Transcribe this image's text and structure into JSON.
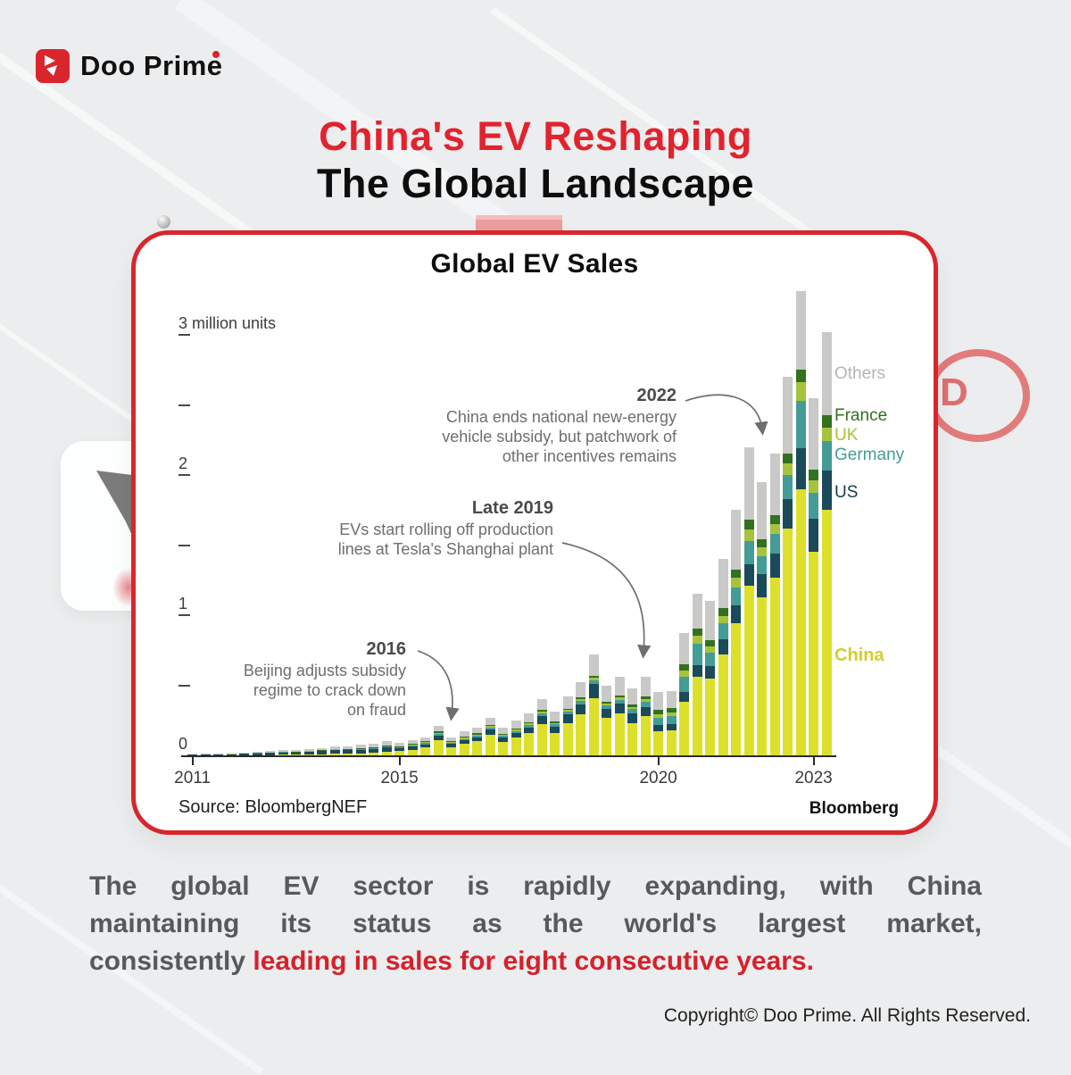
{
  "brand": {
    "logo_text": "Doo Prime"
  },
  "header": {
    "title_line1": "China's EV Reshaping",
    "title_line2": "The Global Landscape"
  },
  "card": {
    "source": "Source: BloombergNEF",
    "attribution": "Bloomberg"
  },
  "annotations": [
    {
      "year": "2022",
      "lines": [
        "China ends national new-energy",
        "vehicle subsidy, but patchwork of",
        "other incentives remains"
      ]
    },
    {
      "year": "Late 2019",
      "lines": [
        "EVs start rolling off production",
        "lines at Tesla's Shanghai plant"
      ]
    },
    {
      "year": "2016",
      "lines": [
        "Beijing adjusts subsidy",
        "regime to crack down",
        "on fraud"
      ]
    }
  ],
  "chart_data": {
    "type": "bar",
    "stacked": true,
    "title": "Global EV Sales",
    "unit": "million units",
    "ylim": [
      0,
      3.5
    ],
    "y_axis": {
      "ticks": [
        {
          "value": 3,
          "label": "3 million units"
        },
        {
          "value": 2,
          "label": "2"
        },
        {
          "value": 1,
          "label": "1"
        },
        {
          "value": 0,
          "label": "0"
        }
      ],
      "minor_ticks": [
        0.5,
        1.5,
        2.5
      ]
    },
    "x_axis": {
      "ticks": [
        {
          "label": "2011",
          "quarter_index": 0
        },
        {
          "label": "2015",
          "quarter_index": 16
        },
        {
          "label": "2020",
          "quarter_index": 36
        },
        {
          "label": "2023",
          "quarter_index": 48
        }
      ]
    },
    "series_order": [
      "china",
      "us",
      "germany",
      "uk",
      "france",
      "others"
    ],
    "series_colors": {
      "china": "#dde02b",
      "us": "#1b4a5a",
      "germany": "#449c96",
      "uk": "#a6c33d",
      "france": "#337020",
      "others": "#c9c9c7"
    },
    "legend": [
      {
        "key": "others",
        "label": "Others",
        "color": "#b5b5b3"
      },
      {
        "key": "france",
        "label": "France",
        "color": "#33701f"
      },
      {
        "key": "uk",
        "label": "UK",
        "color": "#a6c33d"
      },
      {
        "key": "germany",
        "label": "Germany",
        "color": "#439c96"
      },
      {
        "key": "us",
        "label": "US",
        "color": "#12404f"
      },
      {
        "key": "china",
        "label": "China",
        "color": "#d2ce2b"
      }
    ],
    "quarters": [
      {
        "label": "2011 Q1",
        "china": 0.001,
        "us": 0.003,
        "germany": 0.0,
        "uk": 0.0,
        "france": 0.001,
        "others": 0.003
      },
      {
        "label": "2011 Q2",
        "china": 0.001,
        "us": 0.004,
        "germany": 0.0,
        "uk": 0.0,
        "france": 0.001,
        "others": 0.004
      },
      {
        "label": "2011 Q3",
        "china": 0.001,
        "us": 0.005,
        "germany": 0.001,
        "uk": 0.0,
        "france": 0.001,
        "others": 0.004
      },
      {
        "label": "2011 Q4",
        "china": 0.002,
        "us": 0.006,
        "germany": 0.001,
        "uk": 0.001,
        "france": 0.001,
        "others": 0.005
      },
      {
        "label": "2012 Q1",
        "china": 0.002,
        "us": 0.009,
        "germany": 0.001,
        "uk": 0.001,
        "france": 0.002,
        "others": 0.007
      },
      {
        "label": "2012 Q2",
        "china": 0.003,
        "us": 0.012,
        "germany": 0.001,
        "uk": 0.001,
        "france": 0.002,
        "others": 0.009
      },
      {
        "label": "2012 Q3",
        "china": 0.003,
        "us": 0.013,
        "germany": 0.001,
        "uk": 0.001,
        "france": 0.002,
        "others": 0.01
      },
      {
        "label": "2012 Q4",
        "china": 0.004,
        "us": 0.017,
        "germany": 0.002,
        "uk": 0.001,
        "france": 0.003,
        "others": 0.013
      },
      {
        "label": "2013 Q1",
        "china": 0.004,
        "us": 0.016,
        "germany": 0.001,
        "uk": 0.001,
        "france": 0.003,
        "others": 0.013
      },
      {
        "label": "2013 Q2",
        "china": 0.006,
        "us": 0.02,
        "germany": 0.002,
        "uk": 0.001,
        "france": 0.003,
        "others": 0.016
      },
      {
        "label": "2013 Q3",
        "china": 0.008,
        "us": 0.022,
        "germany": 0.002,
        "uk": 0.001,
        "france": 0.003,
        "others": 0.016
      },
      {
        "label": "2013 Q4",
        "china": 0.012,
        "us": 0.026,
        "germany": 0.002,
        "uk": 0.002,
        "france": 0.004,
        "others": 0.019
      },
      {
        "label": "2014 Q1",
        "china": 0.012,
        "us": 0.024,
        "germany": 0.003,
        "uk": 0.002,
        "france": 0.004,
        "others": 0.02
      },
      {
        "label": "2014 Q2",
        "china": 0.015,
        "us": 0.026,
        "germany": 0.003,
        "uk": 0.003,
        "france": 0.005,
        "others": 0.023
      },
      {
        "label": "2014 Q3",
        "china": 0.018,
        "us": 0.028,
        "germany": 0.003,
        "uk": 0.003,
        "france": 0.005,
        "others": 0.025
      },
      {
        "label": "2014 Q4",
        "china": 0.025,
        "us": 0.032,
        "germany": 0.004,
        "uk": 0.004,
        "france": 0.006,
        "others": 0.029
      },
      {
        "label": "2015 Q1",
        "china": 0.03,
        "us": 0.02,
        "germany": 0.005,
        "uk": 0.005,
        "france": 0.005,
        "others": 0.025
      },
      {
        "label": "2015 Q2",
        "china": 0.04,
        "us": 0.022,
        "germany": 0.006,
        "uk": 0.006,
        "france": 0.006,
        "others": 0.03
      },
      {
        "label": "2015 Q3",
        "china": 0.055,
        "us": 0.024,
        "germany": 0.007,
        "uk": 0.007,
        "france": 0.007,
        "others": 0.03
      },
      {
        "label": "2015 Q4",
        "china": 0.11,
        "us": 0.03,
        "germany": 0.01,
        "uk": 0.01,
        "france": 0.01,
        "others": 0.04
      },
      {
        "label": "2016 Q1",
        "china": 0.055,
        "us": 0.025,
        "germany": 0.007,
        "uk": 0.007,
        "france": 0.007,
        "others": 0.029
      },
      {
        "label": "2016 Q2",
        "china": 0.08,
        "us": 0.028,
        "germany": 0.009,
        "uk": 0.008,
        "france": 0.008,
        "others": 0.037
      },
      {
        "label": "2016 Q3",
        "china": 0.1,
        "us": 0.03,
        "germany": 0.01,
        "uk": 0.009,
        "france": 0.009,
        "others": 0.042
      },
      {
        "label": "2016 Q4",
        "china": 0.145,
        "us": 0.04,
        "germany": 0.012,
        "uk": 0.01,
        "france": 0.01,
        "others": 0.053
      },
      {
        "label": "2017 Q1",
        "china": 0.095,
        "us": 0.03,
        "germany": 0.012,
        "uk": 0.008,
        "france": 0.008,
        "others": 0.047
      },
      {
        "label": "2017 Q2",
        "china": 0.125,
        "us": 0.035,
        "germany": 0.014,
        "uk": 0.01,
        "france": 0.009,
        "others": 0.057
      },
      {
        "label": "2017 Q3",
        "china": 0.16,
        "us": 0.04,
        "germany": 0.015,
        "uk": 0.011,
        "france": 0.01,
        "others": 0.064
      },
      {
        "label": "2017 Q4",
        "china": 0.225,
        "us": 0.055,
        "germany": 0.018,
        "uk": 0.013,
        "france": 0.012,
        "others": 0.077
      },
      {
        "label": "2018 Q1",
        "china": 0.16,
        "us": 0.045,
        "germany": 0.017,
        "uk": 0.01,
        "france": 0.01,
        "others": 0.068
      },
      {
        "label": "2018 Q2",
        "china": 0.23,
        "us": 0.06,
        "germany": 0.02,
        "uk": 0.012,
        "france": 0.012,
        "others": 0.086
      },
      {
        "label": "2018 Q3",
        "china": 0.29,
        "us": 0.075,
        "germany": 0.022,
        "uk": 0.013,
        "france": 0.013,
        "others": 0.107
      },
      {
        "label": "2018 Q4",
        "china": 0.41,
        "us": 0.1,
        "germany": 0.028,
        "uk": 0.016,
        "france": 0.016,
        "others": 0.15
      },
      {
        "label": "2019 Q1",
        "china": 0.27,
        "us": 0.06,
        "germany": 0.024,
        "uk": 0.016,
        "france": 0.014,
        "others": 0.116
      },
      {
        "label": "2019 Q2",
        "china": 0.3,
        "us": 0.07,
        "germany": 0.026,
        "uk": 0.017,
        "france": 0.015,
        "others": 0.132
      },
      {
        "label": "2019 Q3",
        "china": 0.23,
        "us": 0.07,
        "germany": 0.028,
        "uk": 0.018,
        "france": 0.016,
        "others": 0.118
      },
      {
        "label": "2019 Q4",
        "china": 0.28,
        "us": 0.065,
        "germany": 0.035,
        "uk": 0.02,
        "france": 0.02,
        "others": 0.14
      },
      {
        "label": "2020 Q1",
        "china": 0.17,
        "us": 0.045,
        "germany": 0.05,
        "uk": 0.03,
        "france": 0.03,
        "others": 0.125
      },
      {
        "label": "2020 Q2",
        "china": 0.18,
        "us": 0.045,
        "germany": 0.055,
        "uk": 0.028,
        "france": 0.032,
        "others": 0.12
      },
      {
        "label": "2020 Q3",
        "china": 0.38,
        "us": 0.07,
        "germany": 0.11,
        "uk": 0.045,
        "france": 0.045,
        "others": 0.22
      },
      {
        "label": "2020 Q4",
        "china": 0.56,
        "us": 0.085,
        "germany": 0.15,
        "uk": 0.055,
        "france": 0.055,
        "others": 0.245
      },
      {
        "label": "2021 Q1",
        "china": 0.55,
        "us": 0.09,
        "germany": 0.09,
        "uk": 0.045,
        "france": 0.045,
        "others": 0.28
      },
      {
        "label": "2021 Q2",
        "china": 0.72,
        "us": 0.11,
        "germany": 0.11,
        "uk": 0.055,
        "france": 0.055,
        "others": 0.35
      },
      {
        "label": "2021 Q3",
        "china": 0.94,
        "us": 0.13,
        "germany": 0.13,
        "uk": 0.065,
        "france": 0.06,
        "others": 0.425
      },
      {
        "label": "2021 Q4",
        "china": 1.21,
        "us": 0.15,
        "germany": 0.17,
        "uk": 0.08,
        "france": 0.07,
        "others": 0.52
      },
      {
        "label": "2022 Q1",
        "china": 1.13,
        "us": 0.16,
        "germany": 0.13,
        "uk": 0.065,
        "france": 0.055,
        "others": 0.41
      },
      {
        "label": "2022 Q2",
        "china": 1.27,
        "us": 0.17,
        "germany": 0.14,
        "uk": 0.07,
        "france": 0.06,
        "others": 0.44
      },
      {
        "label": "2022 Q3",
        "china": 1.62,
        "us": 0.21,
        "germany": 0.17,
        "uk": 0.085,
        "france": 0.07,
        "others": 0.545
      },
      {
        "label": "2022 Q4",
        "china": 1.9,
        "us": 0.29,
        "germany": 0.34,
        "uk": 0.13,
        "france": 0.09,
        "others": 0.56
      },
      {
        "label": "2023 Q1",
        "china": 1.45,
        "us": 0.24,
        "germany": 0.18,
        "uk": 0.09,
        "france": 0.075,
        "others": 0.515
      },
      {
        "label": "2023 Q2",
        "china": 1.75,
        "us": 0.28,
        "germany": 0.21,
        "uk": 0.1,
        "france": 0.085,
        "others": 0.595
      }
    ]
  },
  "body": {
    "line1": "The global EV sector is rapidly expanding, with China",
    "line2": "maintaining its status as the world's largest market,",
    "line3_gray": "consistently ",
    "line3_red": "leading in sales for eight consecutive years."
  },
  "footer": {
    "copyright": "Copyright© Doo Prime. All Rights Reserved."
  }
}
